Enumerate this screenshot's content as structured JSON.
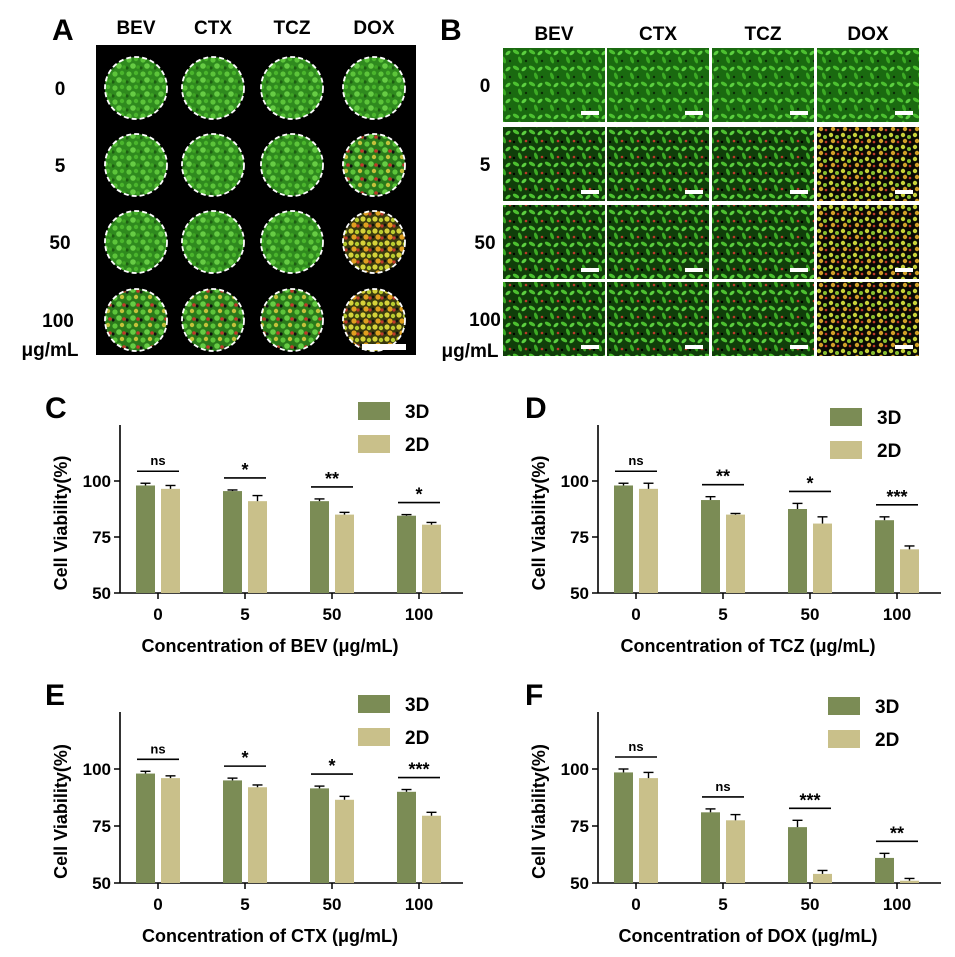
{
  "panels": {
    "A": {
      "letter": "A",
      "columns": [
        "BEV",
        "CTX",
        "TCZ",
        "DOX"
      ],
      "rows": [
        "0",
        "5",
        "50",
        "100"
      ],
      "unit": "μg/mL"
    },
    "B": {
      "letter": "B",
      "columns": [
        "BEV",
        "CTX",
        "TCZ",
        "DOX"
      ],
      "rows": [
        "0",
        "5",
        "50",
        "100"
      ],
      "unit": "μg/mL"
    }
  },
  "colors": {
    "d3": "#7b8c55",
    "d2": "#c9c08a",
    "axis": "#000000"
  },
  "chart_data": [
    {
      "letter": "C",
      "type": "bar",
      "categories": [
        "0",
        "5",
        "50",
        "100"
      ],
      "series": [
        {
          "name": "3D",
          "values": [
            98,
            95.5,
            91,
            84.5
          ],
          "errors": [
            1,
            0.5,
            1,
            0.5
          ]
        },
        {
          "name": "2D",
          "values": [
            96.5,
            91,
            85,
            80.5
          ],
          "errors": [
            1.5,
            2.5,
            1,
            1
          ]
        }
      ],
      "significance": [
        "ns",
        "*",
        "**",
        "*"
      ],
      "xlabel": "Concentration of BEV (μg/mL)",
      "ylabel": "Cell Viability(%)",
      "ylim": [
        50,
        125
      ],
      "yticks": [
        "50",
        "75",
        "100"
      ],
      "legend": "top-right"
    },
    {
      "letter": "D",
      "type": "bar",
      "categories": [
        "0",
        "5",
        "50",
        "100"
      ],
      "series": [
        {
          "name": "3D",
          "values": [
            98,
            91.5,
            87.5,
            82.5
          ],
          "errors": [
            1,
            1.5,
            2.5,
            1.5
          ]
        },
        {
          "name": "2D",
          "values": [
            96.5,
            85,
            81,
            69.5
          ],
          "errors": [
            2.5,
            0.5,
            3,
            1.5
          ]
        }
      ],
      "significance": [
        "ns",
        "**",
        "*",
        "***"
      ],
      "xlabel": "Concentration of TCZ (μg/mL)",
      "ylabel": "Cell Viability(%)",
      "ylim": [
        50,
        125
      ],
      "yticks": [
        "50",
        "75",
        "100"
      ],
      "legend": "top-right"
    },
    {
      "letter": "E",
      "type": "bar",
      "categories": [
        "0",
        "5",
        "50",
        "100"
      ],
      "series": [
        {
          "name": "3D",
          "values": [
            98,
            95,
            91.5,
            90
          ],
          "errors": [
            1,
            1,
            1,
            1
          ]
        },
        {
          "name": "2D",
          "values": [
            96,
            92,
            86.5,
            79.5
          ],
          "errors": [
            1,
            1,
            1.5,
            1.5
          ]
        }
      ],
      "significance": [
        "ns",
        "*",
        "*",
        "***"
      ],
      "xlabel": "Concentration of CTX (μg/mL)",
      "ylabel": "Cell Viability(%)",
      "ylim": [
        50,
        125
      ],
      "yticks": [
        "50",
        "75",
        "100"
      ],
      "legend": "top-right"
    },
    {
      "letter": "F",
      "type": "bar",
      "categories": [
        "0",
        "5",
        "50",
        "100"
      ],
      "series": [
        {
          "name": "3D",
          "values": [
            98.5,
            81,
            74.5,
            61
          ],
          "errors": [
            1.5,
            1.5,
            3,
            2
          ]
        },
        {
          "name": "2D",
          "values": [
            96,
            77.5,
            54,
            51
          ],
          "errors": [
            2.5,
            2.5,
            1.5,
            1
          ]
        }
      ],
      "significance": [
        "ns",
        "ns",
        "***",
        "**"
      ],
      "xlabel": "Concentration of DOX (μg/mL)",
      "ylabel": "Cell Viability(%)",
      "ylim": [
        50,
        125
      ],
      "yticks": [
        "50",
        "75",
        "100"
      ],
      "legend": "top-right"
    }
  ]
}
